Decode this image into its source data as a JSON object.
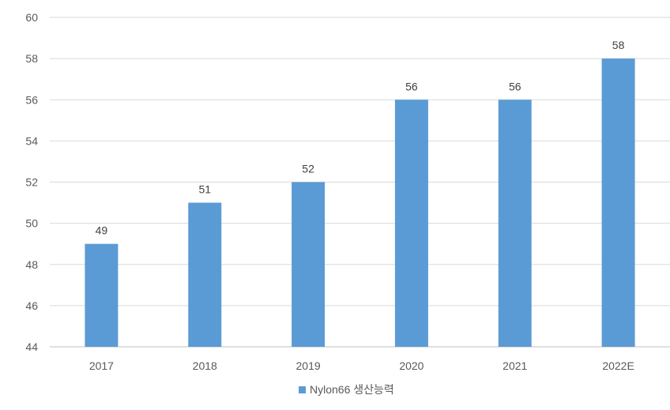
{
  "chart_data": {
    "type": "bar",
    "categories": [
      "2017",
      "2018",
      "2019",
      "2020",
      "2021",
      "2022E"
    ],
    "series": [
      {
        "name": "Nylon66 생산능력",
        "values": [
          49,
          51,
          52,
          56,
          56,
          58
        ],
        "color": "#5b9bd5"
      }
    ],
    "data_labels": [
      "49",
      "51",
      "52",
      "56",
      "56",
      "58"
    ],
    "ylim": [
      44,
      60
    ],
    "yticks": [
      "44",
      "46",
      "48",
      "50",
      "52",
      "54",
      "56",
      "58",
      "60"
    ],
    "grid": true,
    "legend_position": "bottom-center",
    "title": "",
    "xlabel": "",
    "ylabel": ""
  },
  "colors": {
    "bar": "#5b9bd5",
    "grid": "#d9d9d9",
    "axis": "#bfbfbf",
    "text": "#595959",
    "label": "#404040"
  }
}
